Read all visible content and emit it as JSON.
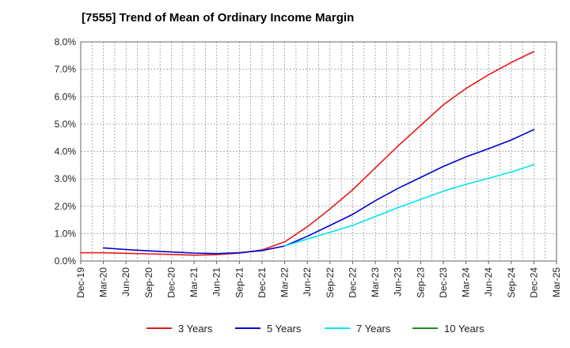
{
  "chart_data": {
    "type": "line",
    "title": "[7555]  Trend of Mean of Ordinary Income Margin",
    "xlabel": "",
    "ylabel": "",
    "x_ticks": [
      "Dec-19",
      "Mar-20",
      "Jun-20",
      "Sep-20",
      "Dec-20",
      "Mar-21",
      "Jun-21",
      "Sep-21",
      "Dec-21",
      "Mar-22",
      "Jun-22",
      "Sep-22",
      "Dec-22",
      "Mar-23",
      "Jun-23",
      "Sep-23",
      "Dec-23",
      "Mar-24",
      "Jun-24",
      "Sep-24",
      "Dec-24",
      "Mar-25"
    ],
    "y_ticks": [
      "0.0%",
      "1.0%",
      "2.0%",
      "3.0%",
      "4.0%",
      "5.0%",
      "6.0%",
      "7.0%",
      "8.0%"
    ],
    "ylim": [
      0,
      8
    ],
    "y_unit": "%",
    "grid": true,
    "legend_position": "bottom",
    "series": [
      {
        "name": "3 Years",
        "color": "#e41a1c",
        "x": [
          "Dec-19",
          "Mar-20",
          "Jun-20",
          "Sep-20",
          "Dec-20",
          "Mar-21",
          "Jun-21",
          "Sep-21",
          "Dec-21",
          "Mar-22",
          "Jun-22",
          "Sep-22",
          "Dec-22",
          "Mar-23",
          "Jun-23",
          "Sep-23",
          "Dec-23",
          "Mar-24",
          "Jun-24",
          "Sep-24",
          "Dec-24"
        ],
        "values": [
          0.3,
          0.3,
          0.28,
          0.26,
          0.24,
          0.21,
          0.23,
          0.29,
          0.4,
          0.7,
          1.25,
          1.9,
          2.6,
          3.4,
          4.2,
          4.95,
          5.7,
          6.3,
          6.8,
          7.25,
          7.65
        ]
      },
      {
        "name": "5 Years",
        "color": "#0000cc",
        "x": [
          "Mar-20",
          "Jun-20",
          "Sep-20",
          "Dec-20",
          "Mar-21",
          "Jun-21",
          "Sep-21",
          "Dec-21",
          "Mar-22",
          "Jun-22",
          "Sep-22",
          "Dec-22",
          "Mar-23",
          "Jun-23",
          "Sep-23",
          "Dec-23",
          "Mar-24",
          "Jun-24",
          "Sep-24",
          "Dec-24"
        ],
        "values": [
          0.48,
          0.42,
          0.37,
          0.33,
          0.29,
          0.27,
          0.3,
          0.38,
          0.55,
          0.9,
          1.3,
          1.7,
          2.2,
          2.65,
          3.05,
          3.45,
          3.8,
          4.1,
          4.42,
          4.8
        ]
      },
      {
        "name": "7 Years",
        "color": "#00e5ee",
        "x": [
          "Mar-22",
          "Jun-22",
          "Sep-22",
          "Dec-22",
          "Mar-23",
          "Jun-23",
          "Sep-23",
          "Dec-23",
          "Mar-24",
          "Jun-24",
          "Sep-24",
          "Dec-24"
        ],
        "values": [
          0.55,
          0.8,
          1.05,
          1.3,
          1.62,
          1.95,
          2.25,
          2.55,
          2.8,
          3.02,
          3.25,
          3.52
        ]
      },
      {
        "name": "10 Years",
        "color": "#228b22",
        "x": [],
        "values": []
      }
    ]
  }
}
